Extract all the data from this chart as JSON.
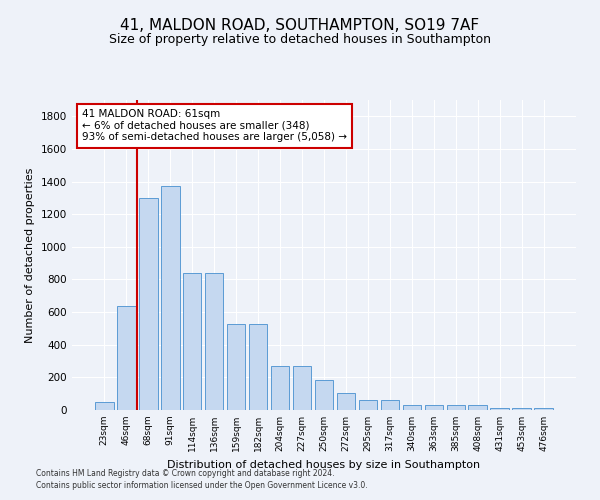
{
  "title": "41, MALDON ROAD, SOUTHAMPTON, SO19 7AF",
  "subtitle": "Size of property relative to detached houses in Southampton",
  "xlabel": "Distribution of detached houses by size in Southampton",
  "ylabel": "Number of detached properties",
  "categories": [
    "23sqm",
    "46sqm",
    "68sqm",
    "91sqm",
    "114sqm",
    "136sqm",
    "159sqm",
    "182sqm",
    "204sqm",
    "227sqm",
    "250sqm",
    "272sqm",
    "295sqm",
    "317sqm",
    "340sqm",
    "363sqm",
    "385sqm",
    "408sqm",
    "431sqm",
    "453sqm",
    "476sqm"
  ],
  "values": [
    50,
    640,
    1300,
    1370,
    840,
    840,
    530,
    530,
    270,
    270,
    185,
    105,
    60,
    60,
    32,
    32,
    28,
    28,
    15,
    12,
    12
  ],
  "bar_color": "#c5d8f0",
  "bar_edge_color": "#5b9bd5",
  "vline_color": "#cc0000",
  "annotation_text": "41 MALDON ROAD: 61sqm\n← 6% of detached houses are smaller (348)\n93% of semi-detached houses are larger (5,058) →",
  "annotation_box_color": "#ffffff",
  "annotation_box_edge": "#cc0000",
  "ylim": [
    0,
    1900
  ],
  "yticks": [
    0,
    200,
    400,
    600,
    800,
    1000,
    1200,
    1400,
    1600,
    1800
  ],
  "footer_line1": "Contains HM Land Registry data © Crown copyright and database right 2024.",
  "footer_line2": "Contains public sector information licensed under the Open Government Licence v3.0.",
  "bg_color": "#eef2f9",
  "grid_color": "#ffffff",
  "title_fontsize": 11,
  "subtitle_fontsize": 9,
  "ylabel_fontsize": 8,
  "xlabel_fontsize": 8
}
